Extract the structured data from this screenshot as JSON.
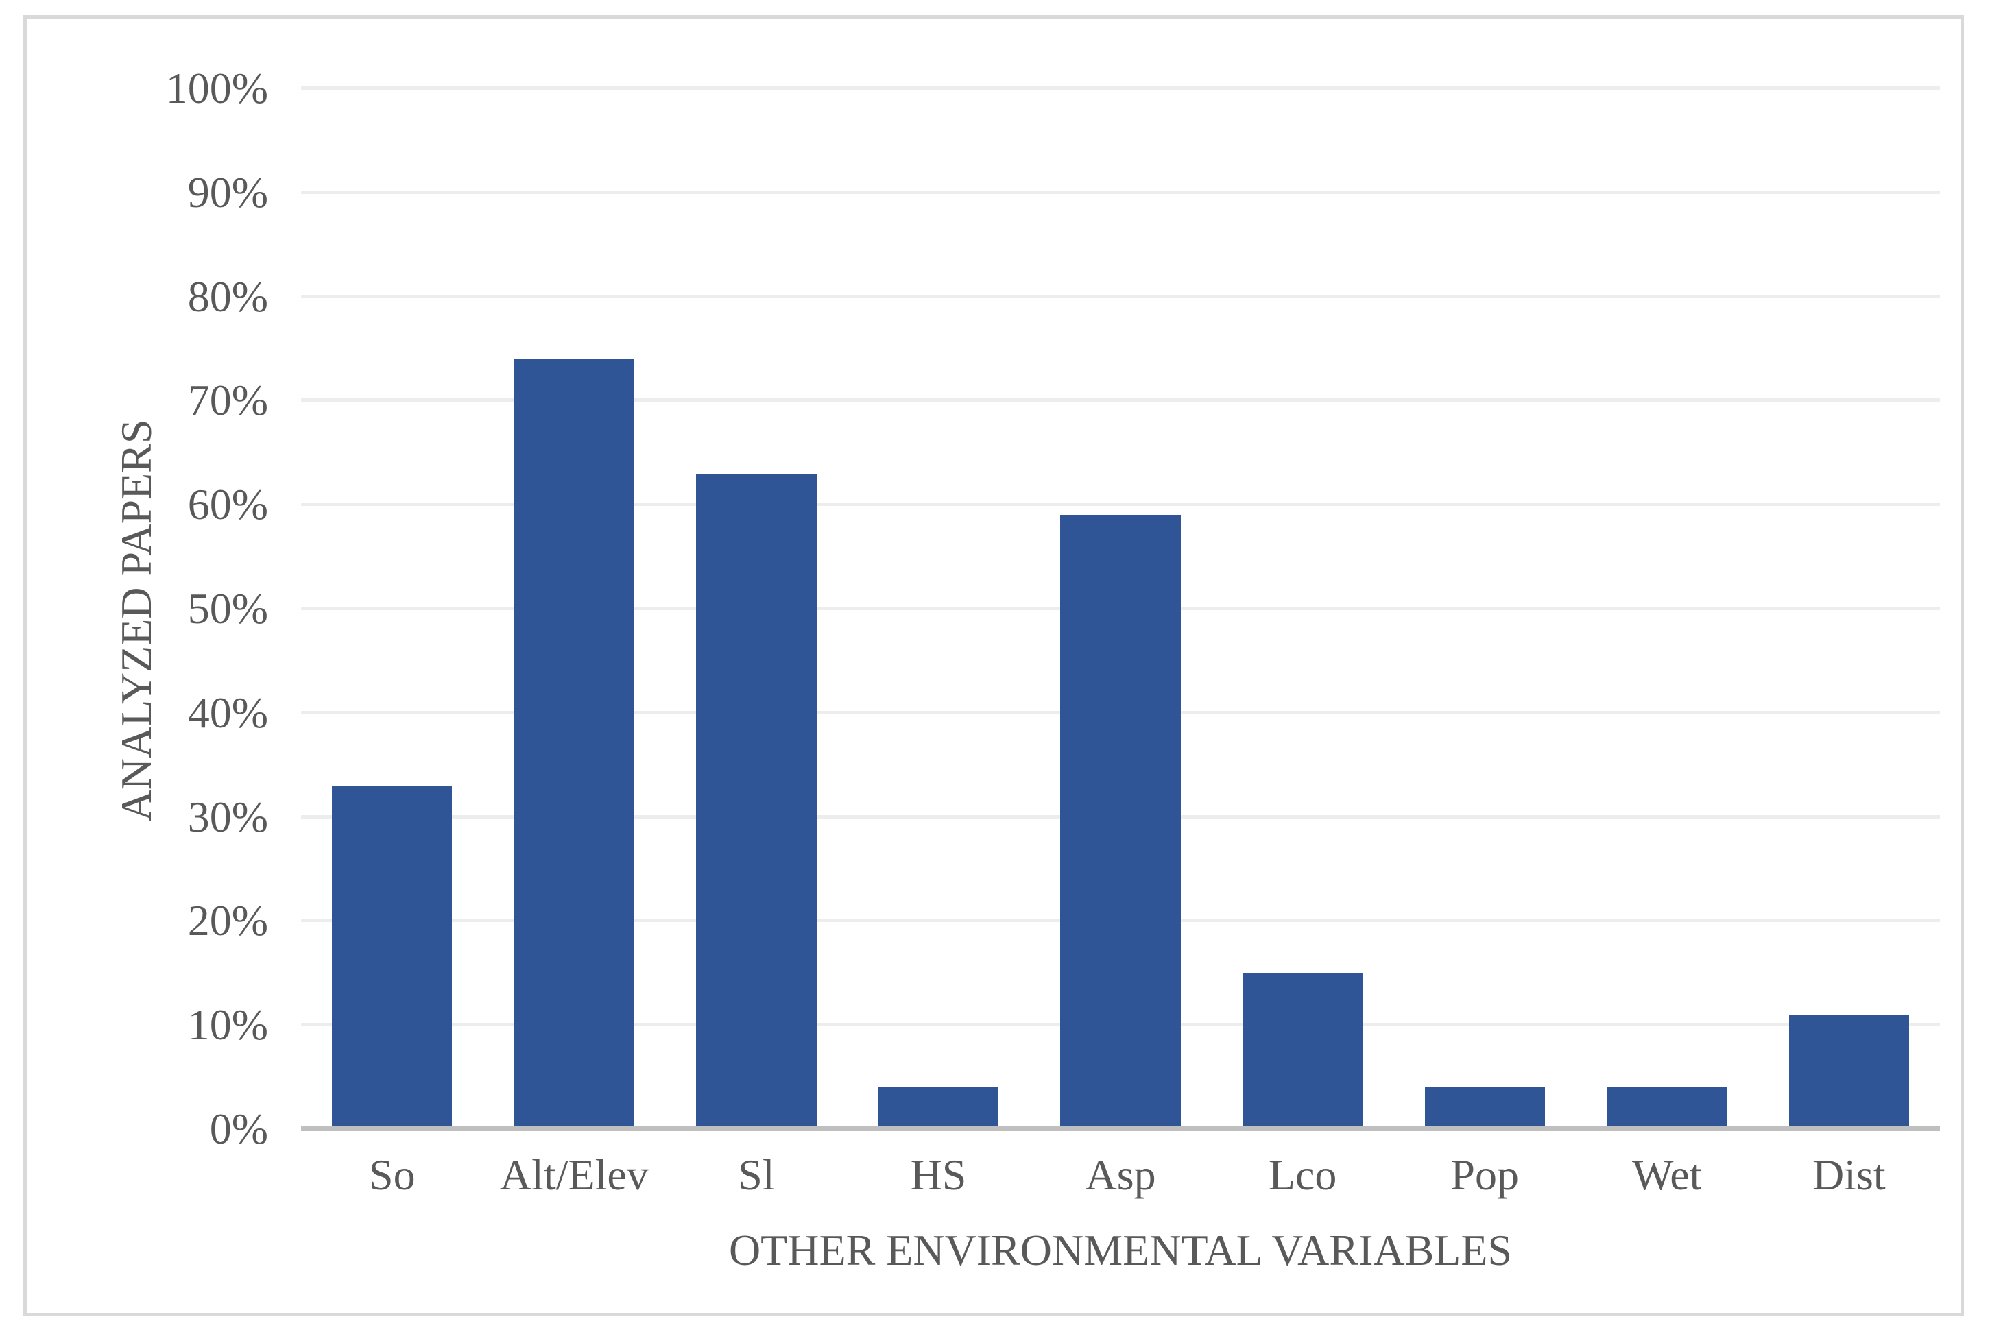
{
  "chart_data": {
    "type": "bar",
    "categories": [
      "So",
      "Alt/Elev",
      "Sl",
      "HS",
      "Asp",
      "Lco",
      "Pop",
      "Wet",
      "Dist"
    ],
    "values": [
      33,
      74,
      63,
      4,
      59,
      15,
      4,
      4,
      11
    ],
    "title": "",
    "xlabel": "OTHER ENVIRONMENTAL VARIABLES",
    "ylabel": "ANALYZED PAPERS",
    "ylim": [
      0,
      100
    ],
    "ytick_step": 10,
    "ytick_labels": [
      "0%",
      "10%",
      "20%",
      "30%",
      "40%",
      "50%",
      "60%",
      "70%",
      "80%",
      "90%",
      "100%"
    ],
    "grid": true,
    "legend": "none"
  },
  "colors": {
    "bar": "#2F5597",
    "text": "#595959",
    "gridline": "#EDEDED",
    "axis_line": "#BFBFBF",
    "frame_border": "#D9D9D9",
    "background": "#FFFFFF"
  }
}
